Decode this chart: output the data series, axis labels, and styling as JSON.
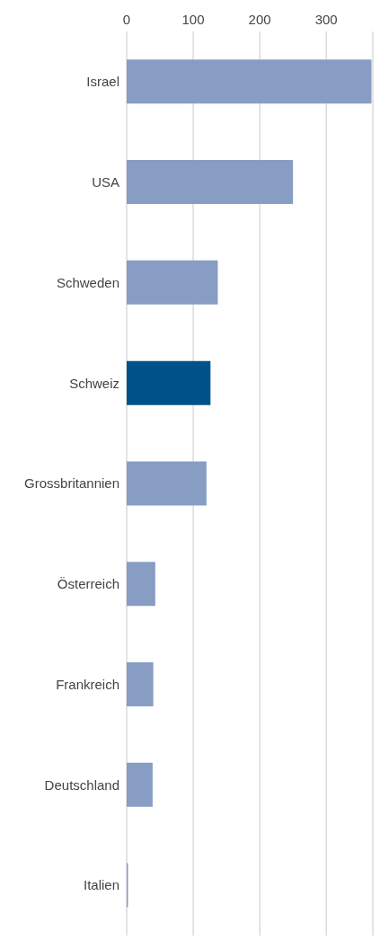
{
  "chart_data": {
    "type": "bar",
    "orientation": "horizontal",
    "categories": [
      "Israel",
      "USA",
      "Schweden",
      "Schweiz",
      "Grossbritannien",
      "Österreich",
      "Frankreich",
      "Deutschland",
      "Italien"
    ],
    "values": [
      368,
      250,
      137,
      126,
      120,
      43,
      40,
      39,
      2
    ],
    "colors": [
      "#879dc3",
      "#879dc3",
      "#879dc3",
      "#00528a",
      "#879dc3",
      "#879dc3",
      "#879dc3",
      "#879dc3",
      "#879dc3"
    ],
    "xlim": [
      0,
      370
    ],
    "xticks": [
      0,
      100,
      200,
      300
    ],
    "grid": "x"
  }
}
